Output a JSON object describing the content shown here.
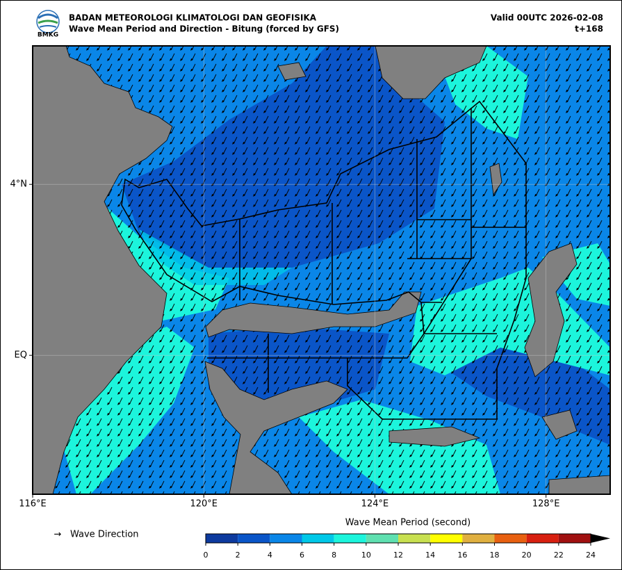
{
  "header": {
    "agency": "BADAN METEOROLOGI KLIMATOLOGI DAN GEOFISIKA",
    "subtitle": "Wave Mean Period and Direction - Bitung (forced by GFS)",
    "valid": "Valid 00UTC 2026-02-08",
    "lead": "t+168",
    "logo_text": "BMKG"
  },
  "map": {
    "xlim": [
      116,
      129.5
    ],
    "ylim": [
      -3.25,
      7.24
    ],
    "xticks": [
      {
        "value": 116,
        "label": "116°E"
      },
      {
        "value": 120,
        "label": "120°E"
      },
      {
        "value": 124,
        "label": "124°E"
      },
      {
        "value": 128,
        "label": "128°E"
      }
    ],
    "yticks": [
      {
        "value": 4,
        "label": "4°N"
      },
      {
        "value": 0,
        "label": "EQ"
      }
    ],
    "grid": true
  },
  "legend": {
    "symbol": "→",
    "label": "Wave Direction"
  },
  "colorbar": {
    "title": "Wave Mean Period (second)",
    "ticks": [
      0,
      2,
      4,
      6,
      8,
      10,
      12,
      14,
      16,
      18,
      20,
      22,
      24
    ],
    "colors": [
      "#0d3a9e",
      "#0a55c8",
      "#0a86e8",
      "#00c8e8",
      "#1cf5dc",
      "#5fe0b0",
      "#c8e050",
      "#ffff00",
      "#e0b040",
      "#e86010",
      "#d82010",
      "#a01010"
    ]
  }
}
